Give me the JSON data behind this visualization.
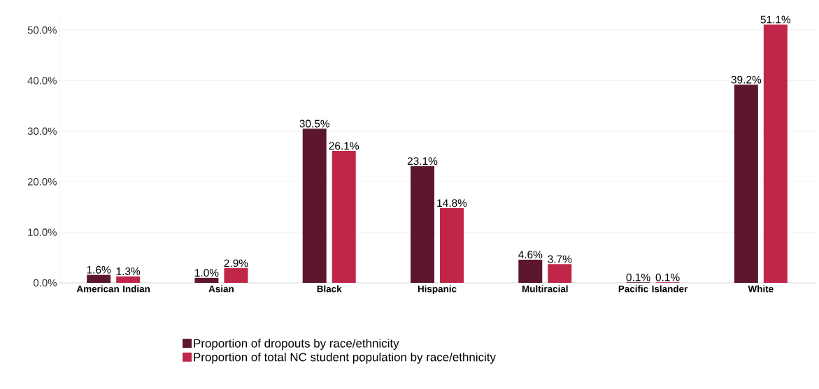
{
  "chart_data": {
    "type": "bar",
    "categories": [
      "American Indian",
      "Asian",
      "Black",
      "Hispanic",
      "Multiracial",
      "Pacific Islander",
      "White"
    ],
    "series": [
      {
        "name": "Proportion of dropouts by race/ethnicity",
        "color": "#5c1630",
        "values": [
          1.6,
          1.0,
          30.5,
          23.1,
          4.6,
          0.1,
          39.2
        ],
        "value_labels": [
          "1.6%",
          "1.0%",
          "30.5%",
          "23.1%",
          "4.6%",
          "0.1%",
          "39.2%"
        ]
      },
      {
        "name": "Proportion of total NC student population by race/ethnicity",
        "color": "#c0264a",
        "values": [
          1.3,
          2.9,
          26.1,
          14.8,
          3.7,
          0.1,
          51.1
        ],
        "value_labels": [
          "1.3%",
          "2.9%",
          "26.1%",
          "14.8%",
          "3.7%",
          "0.1%",
          "51.1%"
        ]
      }
    ],
    "ylim": [
      0,
      52.5
    ],
    "yticks": [
      {
        "value": 0,
        "label": "0.0%"
      },
      {
        "value": 10,
        "label": "10.0%"
      },
      {
        "value": 20,
        "label": "20.0%"
      },
      {
        "value": 30,
        "label": "30.0%"
      },
      {
        "value": 40,
        "label": "40.0%"
      },
      {
        "value": 50,
        "label": "50.0%"
      }
    ],
    "grid": "y",
    "legend": "bottom"
  }
}
